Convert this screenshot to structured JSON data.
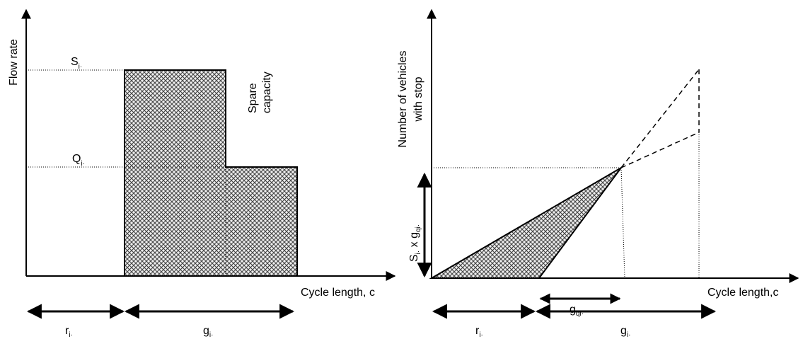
{
  "left": {
    "y_axis_label": "Flow rate",
    "x_axis_label": "Cycle length, c",
    "saturation": {
      "text": "S",
      "subscript": "i·"
    },
    "flow": {
      "text": "Q",
      "subscript": "i·"
    },
    "spare_capacity": [
      "Spare",
      "capacity"
    ],
    "red": {
      "text": "r",
      "subscript": "i·"
    },
    "green": {
      "text": "g",
      "subscript": "i·"
    }
  },
  "right": {
    "y_axis_label": [
      "Number of vehicles",
      "with stop"
    ],
    "x_axis_label": "Cycle length,c",
    "queue_label": {
      "text": "S",
      "subscript": "i·",
      "times": " x g",
      "subscript2": "qi·"
    },
    "queue_green": {
      "text": "g",
      "subscript": "qi·"
    },
    "red": {
      "text": "r",
      "subscript": "i·"
    },
    "green": {
      "text": "g",
      "subscript": "i·"
    }
  }
}
